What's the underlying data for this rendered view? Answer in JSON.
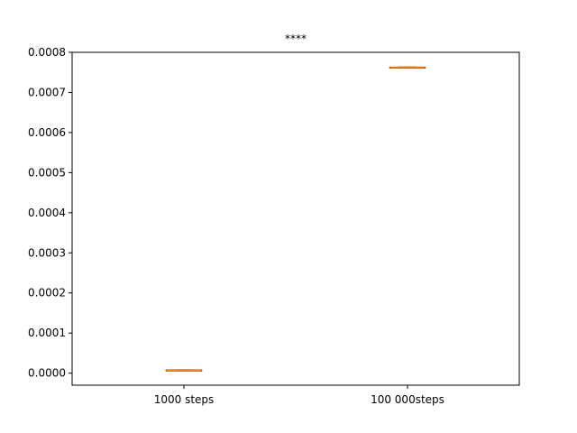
{
  "chart_data": {
    "type": "box",
    "title": "****",
    "xlabel": "",
    "ylabel": "",
    "categories": [
      "1000 steps",
      "100 000steps"
    ],
    "boxes": [
      {
        "label": "1000 steps",
        "whisker_low": 7.2e-06,
        "q1": 7.6e-06,
        "median": 7.8e-06,
        "q3": 8e-06,
        "whisker_high": 8.4e-06
      },
      {
        "label": "100 000steps",
        "whisker_low": 0.0007608,
        "q1": 0.0007614,
        "median": 0.0007622,
        "q3": 0.0007628,
        "whisker_high": 0.0007634
      }
    ],
    "ylim": [
      -3e-05,
      0.0008
    ],
    "yticks": [
      0.0,
      0.0001,
      0.0002,
      0.0003,
      0.0004,
      0.0005,
      0.0006,
      0.0007,
      0.0008
    ],
    "ytick_labels": [
      "0.0000",
      "0.0001",
      "0.0002",
      "0.0003",
      "0.0004",
      "0.0005",
      "0.0006",
      "0.0007",
      "0.0008"
    ],
    "grid": false,
    "colors": {
      "box": "#000000",
      "median": "#ff7f0e",
      "axes": "#000000"
    }
  }
}
